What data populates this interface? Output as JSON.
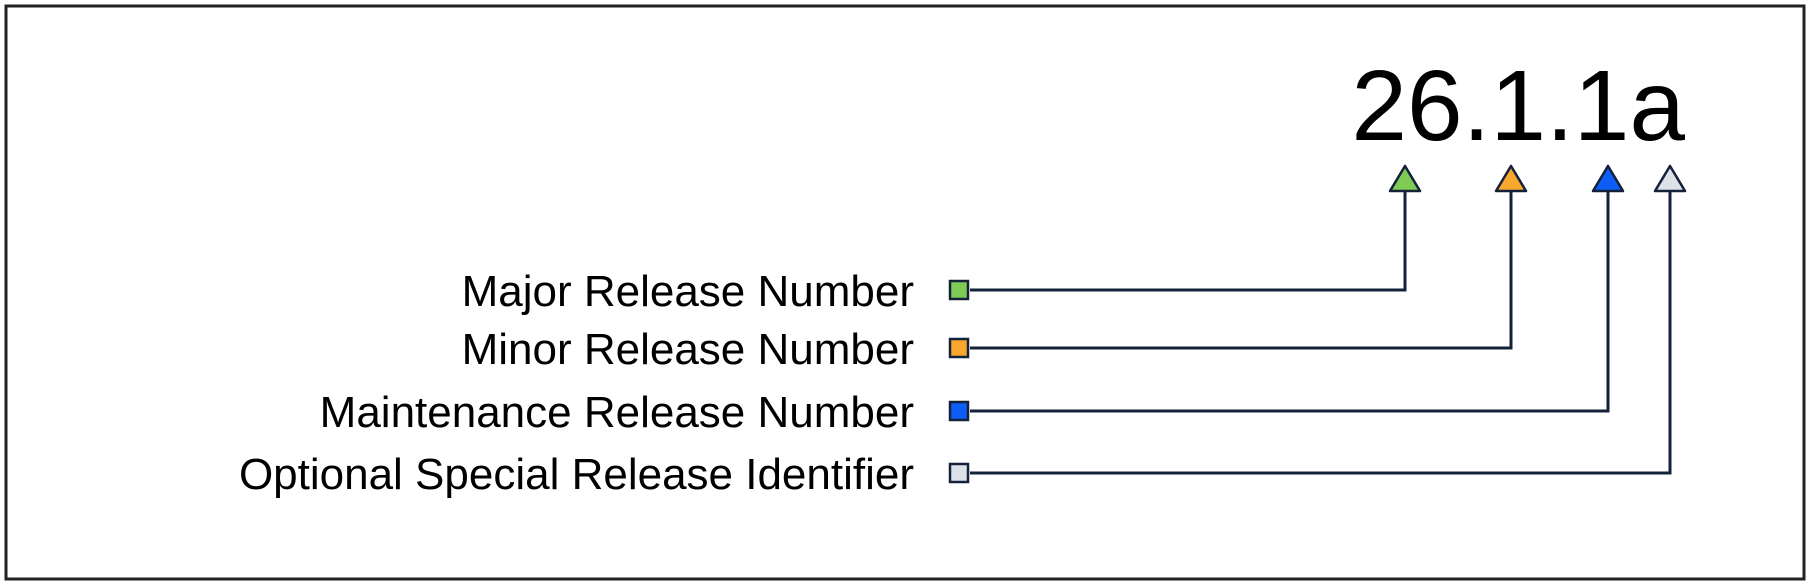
{
  "version": "26.1.1a",
  "parts": [
    {
      "label": "Major Release Number",
      "color": "#7ecb55"
    },
    {
      "label": "Minor Release Number",
      "color": "#f7a82d"
    },
    {
      "label": "Maintenance Release Number",
      "color": "#0d5ef7"
    },
    {
      "label": "Optional Special Release Identifier",
      "color": "#dde2e9"
    }
  ],
  "stroke_color": "#14213a"
}
